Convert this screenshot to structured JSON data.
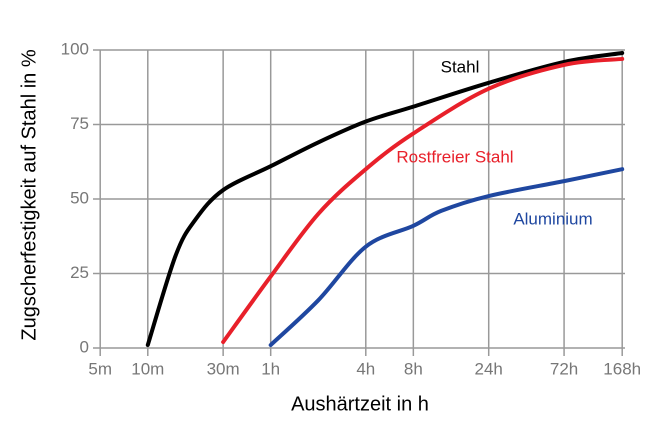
{
  "chart_data": {
    "type": "line",
    "x_label": "Aushärtzeit in h",
    "y_label": "Zugscherfestigkeit auf Stahl in %",
    "xscale": "log",
    "xlim": [
      0.075,
      175
    ],
    "ylim": [
      0,
      100
    ],
    "xticks": [
      {
        "value": 0.0833,
        "label": "5m"
      },
      {
        "value": 0.1667,
        "label": "10m"
      },
      {
        "value": 0.5,
        "label": "30m"
      },
      {
        "value": 1,
        "label": "1h"
      },
      {
        "value": 4,
        "label": "4h"
      },
      {
        "value": 8,
        "label": "8h"
      },
      {
        "value": 24,
        "label": "24h"
      },
      {
        "value": 72,
        "label": "72h"
      },
      {
        "value": 168,
        "label": "168h"
      }
    ],
    "yticks": [
      0,
      25,
      50,
      75,
      100
    ],
    "grid": true,
    "series": [
      {
        "name": "Stahl",
        "color": "#000000",
        "x": [
          0.1667,
          0.25,
          0.333,
          0.5,
          1,
          2,
          4,
          8,
          24,
          72,
          168
        ],
        "values": [
          1,
          31,
          43,
          53,
          61,
          69,
          76,
          81,
          89,
          96,
          99
        ]
      },
      {
        "name": "Rostfreier Stahl",
        "color": "#e8202a",
        "x": [
          0.5,
          1,
          2,
          4,
          8,
          24,
          72,
          168
        ],
        "values": [
          2,
          24,
          45,
          60,
          72,
          87,
          95,
          97
        ]
      },
      {
        "name": "Aluminium",
        "color": "#1f47a0",
        "x": [
          1,
          2,
          4,
          8,
          12,
          24,
          72,
          168
        ],
        "values": [
          1,
          16,
          34,
          41,
          46,
          51,
          56,
          60
        ]
      }
    ]
  }
}
